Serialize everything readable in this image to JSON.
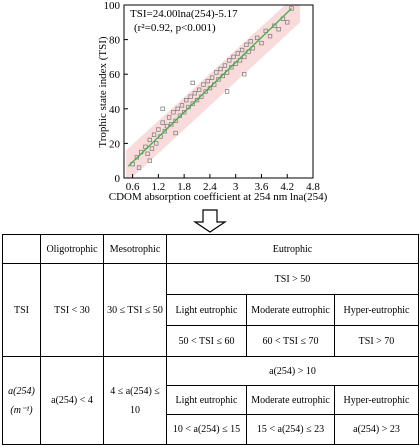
{
  "chart_data": {
    "type": "scatter",
    "ylabel": "Trophic state index (TSI)",
    "xlabel": "CDOM absorption coefficient at 254 nm lna(254)",
    "annotations": [
      "TSI=24.00lna(254)-5.17",
      "(r²=0.92, p<0.001)"
    ],
    "xlim": [
      0.4,
      4.8
    ],
    "xticks": [
      0.6,
      1.2,
      1.8,
      2.4,
      3.0,
      3.6,
      4.2,
      4.8
    ],
    "ylim": [
      0,
      100
    ],
    "yticks": [
      0,
      20,
      40,
      60,
      80,
      100
    ],
    "color": "#777777",
    "x": [
      0.6,
      0.7,
      0.75,
      0.8,
      0.9,
      0.95,
      1.0,
      1.05,
      1.1,
      1.15,
      1.2,
      1.25,
      1.3,
      1.35,
      1.4,
      1.45,
      1.5,
      1.55,
      1.6,
      1.65,
      1.7,
      1.75,
      1.8,
      1.85,
      1.9,
      1.95,
      2.0,
      2.05,
      2.1,
      2.15,
      2.2,
      2.25,
      2.3,
      2.35,
      2.4,
      2.45,
      2.5,
      2.55,
      2.6,
      2.65,
      2.7,
      2.75,
      2.8,
      2.85,
      2.9,
      2.95,
      3.0,
      3.05,
      3.1,
      3.15,
      3.2,
      3.25,
      3.3,
      3.35,
      3.4,
      3.5,
      3.6,
      3.7,
      3.8,
      3.9,
      4.0,
      4.1,
      4.2,
      4.3,
      1.3,
      2.0,
      2.8,
      3.2,
      1.0,
      1.6
    ],
    "values": [
      8,
      12,
      6,
      15,
      18,
      14,
      22,
      17,
      25,
      20,
      28,
      24,
      32,
      27,
      30,
      35,
      31,
      38,
      33,
      40,
      36,
      42,
      38,
      45,
      41,
      47,
      43,
      49,
      45,
      51,
      47,
      54,
      50,
      56,
      52,
      58,
      54,
      61,
      57,
      63,
      59,
      65,
      61,
      68,
      64,
      70,
      66,
      72,
      68,
      74,
      70,
      77,
      73,
      79,
      75,
      81,
      78,
      85,
      82,
      88,
      86,
      92,
      90,
      98,
      40,
      55,
      50,
      60,
      10,
      26
    ],
    "fit": {
      "color": "#3cb043",
      "x": [
        0.5,
        4.3
      ],
      "values": [
        6.83,
        98.03
      ]
    },
    "band": {
      "color": "#f6cccc",
      "x": [
        0.45,
        4.5
      ],
      "lower": [
        -3,
        90
      ],
      "upper": [
        16,
        108
      ]
    }
  },
  "table": {
    "header": [
      "Oligotrophic",
      "Mesotrophic",
      "Eutrophic"
    ],
    "tsi": {
      "label": "TSI",
      "oligo": "TSI < 30",
      "meso": "30 ≤ TSI ≤ 50",
      "eutro": "TSI > 50",
      "sub": [
        "Light eutrophic",
        "Moderate eutrophic",
        "Hyper-eutrophic"
      ],
      "ranges": [
        "50 < TSI ≤ 60",
        "60 < TSI ≤ 70",
        "TSI > 70"
      ]
    },
    "abs": {
      "label": "a(254) (m⁻¹)",
      "oligo": "a(254) < 4",
      "meso": "4 ≤ a(254) ≤ 10",
      "eutro": "a(254) > 10",
      "sub": [
        "Light eutrophic",
        "Moderate eutrophic",
        "Hyper-eutrophic"
      ],
      "ranges": [
        "10 < a(254) ≤ 15",
        "15 < a(254) ≤ 23",
        "a(254) > 23"
      ]
    }
  }
}
